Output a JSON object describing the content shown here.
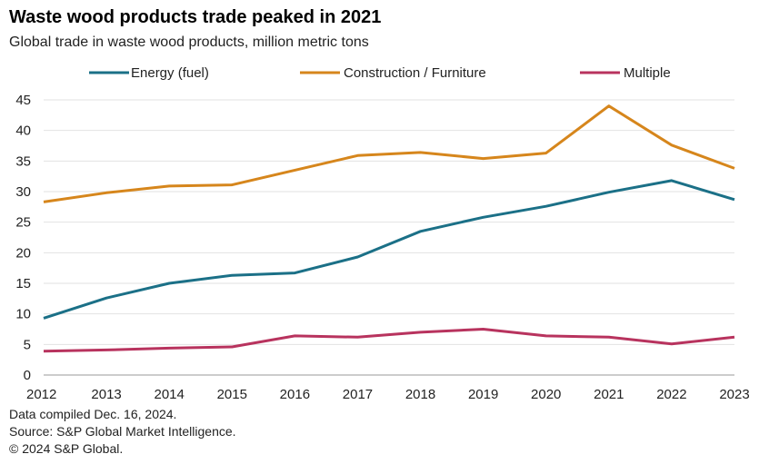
{
  "header": {
    "title": "Waste wood products trade peaked in 2021",
    "subtitle": "Global trade in waste wood products, million metric tons"
  },
  "footer": {
    "line1": "Data compiled Dec. 16, 2024.",
    "line2": "Source: S&P Global Market Intelligence.",
    "line3": "© 2024 S&P Global."
  },
  "chart_data": {
    "type": "line",
    "x": [
      2012,
      2013,
      2014,
      2015,
      2016,
      2017,
      2018,
      2019,
      2020,
      2021,
      2022,
      2023
    ],
    "ylim": [
      0,
      45
    ],
    "yticks": [
      0,
      5,
      10,
      15,
      20,
      25,
      30,
      35,
      40,
      45
    ],
    "grid": "horizontal",
    "legend": "top",
    "series": [
      {
        "name": "Energy (fuel)",
        "color": "#1b7087",
        "values": [
          9.3,
          12.6,
          15.0,
          16.3,
          16.7,
          19.3,
          23.5,
          25.8,
          27.6,
          29.9,
          31.8,
          28.7
        ]
      },
      {
        "name": "Construction / Furniture",
        "color": "#d6861c",
        "values": [
          28.3,
          29.8,
          30.9,
          31.1,
          33.5,
          35.9,
          36.4,
          35.4,
          36.3,
          44.0,
          37.6,
          33.8
        ]
      },
      {
        "name": "Multiple",
        "color": "#b8335e",
        "values": [
          3.9,
          4.1,
          4.4,
          4.6,
          6.4,
          6.2,
          7.0,
          7.5,
          6.4,
          6.2,
          5.1,
          6.2
        ]
      }
    ]
  }
}
